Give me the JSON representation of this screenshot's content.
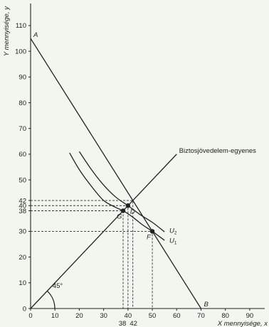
{
  "chart_data": {
    "type": "line",
    "title": "",
    "xlabel": "X mennyisége, x",
    "ylabel": "Y mennyisége, y",
    "xlim": [
      0,
      95
    ],
    "ylim": [
      0,
      118
    ],
    "x_ticks": [
      0,
      10,
      20,
      30,
      40,
      50,
      60,
      70,
      80,
      90
    ],
    "y_ticks": [
      0,
      10,
      20,
      30,
      40,
      50,
      60,
      70,
      80,
      90,
      100,
      110
    ],
    "y_extra_ticks": [
      {
        "value": 42,
        "label": "42"
      },
      {
        "value": 38,
        "label": "38"
      }
    ],
    "x_extra_ticks": [
      {
        "value": 38,
        "label": "38"
      },
      {
        "value": 42,
        "label": "42"
      }
    ],
    "series": [
      {
        "key": "budget",
        "x": [
          0,
          70
        ],
        "y": [
          105,
          0
        ]
      },
      {
        "key": "certainty",
        "name": "Biztosjövedelem-egyenes",
        "x": [
          0,
          60
        ],
        "y": [
          0,
          60
        ]
      },
      {
        "key": "u2",
        "x": [
          20,
          25,
          30,
          35,
          40,
          45,
          50,
          55
        ],
        "y": [
          61,
          54,
          48,
          43.3,
          40,
          36.5,
          33.5,
          29.8
        ]
      },
      {
        "key": "u1",
        "x": [
          16,
          20,
          25,
          30,
          35,
          38,
          42,
          46,
          50,
          55
        ],
        "y": [
          60.5,
          54,
          47.5,
          42,
          39.3,
          38,
          35.5,
          32.5,
          30,
          26.5
        ]
      }
    ],
    "curve_labels": [
      {
        "text": "U",
        "sub": "2",
        "x": 57,
        "y": 29.5
      },
      {
        "text": "U",
        "sub": "1",
        "x": 57,
        "y": 25.5
      }
    ],
    "points": [
      {
        "name": "A",
        "x": 0,
        "y": 105,
        "marker": false
      },
      {
        "name": "B",
        "x": 70,
        "y": 0,
        "marker": false
      },
      {
        "name": "D",
        "x": 40,
        "y": 40,
        "marker": true
      },
      {
        "name": "F",
        "x": 50,
        "y": 30,
        "marker": true
      },
      {
        "name": "G",
        "x": 38,
        "y": 38,
        "marker": true
      }
    ],
    "guides": [
      {
        "x": 42,
        "y": 42
      },
      {
        "x": 40,
        "y": 40
      },
      {
        "x": 38,
        "y": 38
      },
      {
        "x": 50,
        "y": 30
      }
    ],
    "annotations": [
      {
        "text": "45°",
        "x": 9,
        "y": 5
      }
    ]
  }
}
